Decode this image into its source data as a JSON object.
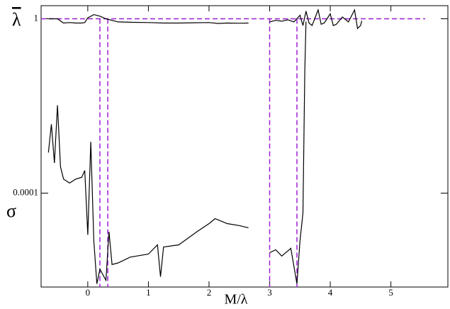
{
  "chart_data": {
    "type": "line",
    "xlabel": "M/λ",
    "ylabels": [
      "λ",
      "σ"
    ],
    "log_y": true,
    "xlim": [
      -0.77,
      5.94
    ],
    "ylim": [
      7e-07,
      2
    ],
    "xticks": [
      0,
      1,
      2,
      3,
      4,
      5
    ],
    "yticks": [
      0.0001,
      1
    ],
    "series": [
      {
        "color": "#000000",
        "x": [
          -0.65,
          -0.5,
          -0.4,
          -0.3,
          -0.2,
          -0.1,
          -0.05,
          0.0,
          0.1,
          0.2,
          0.3,
          0.5,
          0.75,
          1.0,
          1.25,
          1.5,
          1.75,
          2.0,
          2.15,
          2.3,
          2.5,
          2.65,
          null,
          3.0,
          3.1,
          3.2,
          3.3,
          3.4,
          3.5,
          3.55,
          3.6,
          3.65,
          3.7,
          3.8,
          3.85,
          3.9,
          4.0,
          4.05,
          4.1,
          4.2,
          4.3,
          4.4,
          4.45,
          4.5,
          4.52
        ],
        "values": [
          1.0,
          1.0,
          0.8,
          0.82,
          0.8,
          0.8,
          0.82,
          1.05,
          1.25,
          1.15,
          1.0,
          0.85,
          0.83,
          0.82,
          0.8,
          0.8,
          0.81,
          0.82,
          0.78,
          0.8,
          0.79,
          0.8,
          null,
          0.85,
          0.92,
          0.88,
          0.95,
          0.85,
          1.2,
          0.7,
          1.5,
          0.8,
          0.7,
          1.6,
          0.75,
          0.8,
          1.3,
          0.7,
          0.75,
          1.1,
          0.85,
          1.6,
          0.6,
          0.7,
          0.9
        ]
      },
      {
        "color": "#000000",
        "x": [
          -0.65,
          -0.6,
          -0.55,
          -0.5,
          -0.45,
          -0.4,
          -0.3,
          -0.2,
          -0.1,
          -0.05,
          0.0,
          0.05,
          0.1,
          0.15,
          0.2,
          0.3,
          0.35,
          0.4,
          0.5,
          0.7,
          1.0,
          1.15,
          1.2,
          1.25,
          1.5,
          1.8,
          2.0,
          2.1,
          2.3,
          2.5,
          2.65,
          null,
          3.0,
          3.1,
          3.2,
          3.35,
          3.45,
          3.5,
          3.55,
          3.58,
          3.6
        ],
        "values": [
          0.00085,
          0.0038,
          0.00049,
          0.0104,
          0.0004,
          0.00021,
          0.00017,
          0.00021,
          0.00023,
          0.00033,
          1.1e-05,
          0.0015,
          8e-06,
          8.3e-07,
          1.8e-06,
          1e-06,
          1.3e-05,
          2.3e-06,
          2.5e-06,
          3.4e-06,
          4e-06,
          6.5e-06,
          1.2e-06,
          5.8e-06,
          6.5e-06,
          1.3e-05,
          2e-05,
          2.6e-05,
          2e-05,
          1.8e-05,
          1.6e-05,
          null,
          4.3e-06,
          5e-06,
          3.6e-06,
          5.4e-06,
          8.3e-07,
          8e-06,
          3.5e-05,
          0.063,
          0.86
        ]
      }
    ],
    "reference_lines": {
      "color": "#9b1fd6",
      "h": [
        1
      ],
      "v": [
        0.2,
        0.33,
        3.0,
        3.45
      ]
    }
  }
}
